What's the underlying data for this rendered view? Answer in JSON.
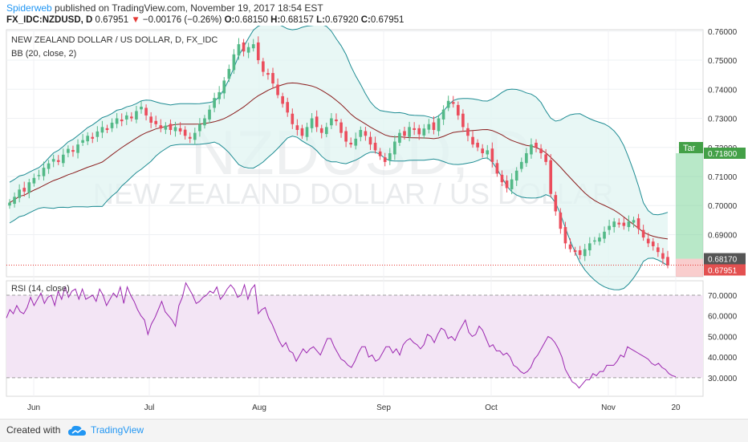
{
  "header": {
    "author": "Spiderweb",
    "published": "published on TradingView.com, November 19, 2017 18:54 EST",
    "symbol": "FX_IDC:NZDUSD, D",
    "last": "0.67951",
    "change": "−0.00176 (−0.26%)",
    "open_label": "O:",
    "open": "0.68150",
    "high_label": "H:",
    "high": "0.68157",
    "low_label": "L:",
    "low": "0.67920",
    "close_label": "C:",
    "close": "0.67951"
  },
  "footer": {
    "created_with": "Created with",
    "brand": "TradingView"
  },
  "colors": {
    "up": "#53b987",
    "down": "#eb4d5c",
    "band": "#1e8c93",
    "basis": "#8b1e1e",
    "rsi": "#9c27b0",
    "rsi_fill": "#f3e5f5",
    "band_fill": "#e0f4f2"
  },
  "chart_data": {
    "type": "candlestick",
    "title": "NEW ZEALAND DOLLAR / US DOLLAR, D, FX_IDC",
    "watermark": {
      "symbol": "NZDUSD, D",
      "name": "NEW ZEALAND DOLLAR / US DOLLAR"
    },
    "indicator_label": "BB (20, close, 2)",
    "xlabel": "",
    "ylabel": "",
    "x_ticks": [
      "Jun",
      "Jul",
      "Aug",
      "Sep",
      "Oct",
      "Nov",
      "20"
    ],
    "price_ticks": [
      "0.76000",
      "0.75000",
      "0.74000",
      "0.73000",
      "0.72000",
      "0.71000",
      "0.70000",
      "0.69000"
    ],
    "ylim": [
      0.6755,
      0.7605
    ],
    "price_levels": {
      "target": "0.71800",
      "entry": "0.68170",
      "stop": "0.67951"
    },
    "target_tag": "Tar",
    "closes": [
      0.701,
      0.703,
      0.7055,
      0.7048,
      0.708,
      0.7095,
      0.7105,
      0.713,
      0.7145,
      0.716,
      0.715,
      0.7175,
      0.7195,
      0.7185,
      0.721,
      0.7225,
      0.724,
      0.723,
      0.7255,
      0.727,
      0.726,
      0.7285,
      0.73,
      0.729,
      0.731,
      0.73,
      0.7325,
      0.734,
      0.731,
      0.7285,
      0.728,
      0.7265,
      0.7275,
      0.726,
      0.727,
      0.7255,
      0.724,
      0.723,
      0.725,
      0.728,
      0.73,
      0.733,
      0.737,
      0.739,
      0.743,
      0.747,
      0.752,
      0.7555,
      0.753,
      0.7545,
      0.7555,
      0.75,
      0.746,
      0.745,
      0.742,
      0.738,
      0.735,
      0.732,
      0.728,
      0.726,
      0.724,
      0.727,
      0.73,
      0.727,
      0.725,
      0.727,
      0.73,
      0.729,
      0.725,
      0.722,
      0.721,
      0.723,
      0.726,
      0.724,
      0.721,
      0.719,
      0.717,
      0.715,
      0.718,
      0.722,
      0.725,
      0.724,
      0.727,
      0.726,
      0.7245,
      0.7265,
      0.728,
      0.726,
      0.73,
      0.733,
      0.736,
      0.735,
      0.731,
      0.727,
      0.724,
      0.721,
      0.72,
      0.718,
      0.719,
      0.715,
      0.711,
      0.708,
      0.706,
      0.709,
      0.712,
      0.715,
      0.718,
      0.721,
      0.72,
      0.718,
      0.715,
      0.704,
      0.698,
      0.692,
      0.687,
      0.685,
      0.684,
      0.683,
      0.685,
      0.687,
      0.688,
      0.689,
      0.691,
      0.693,
      0.6945,
      0.6935,
      0.693,
      0.6945,
      0.695,
      0.692,
      0.689,
      0.687,
      0.686,
      0.684,
      0.6817,
      0.6795
    ],
    "rsi": {
      "label": "RSI (14, close)",
      "ticks": [
        "70.0000",
        "60.0000",
        "50.0000",
        "40.0000",
        "30.0000"
      ],
      "ylim": [
        21,
        77
      ],
      "band": [
        30,
        70
      ],
      "values": [
        59,
        63,
        61,
        65,
        62,
        61,
        64,
        69,
        65,
        68,
        71,
        66,
        69,
        70,
        65,
        72,
        68,
        74,
        69,
        72,
        73,
        68,
        73,
        68,
        69,
        70,
        67,
        73,
        70,
        65,
        68,
        71,
        69,
        74,
        66,
        74,
        70,
        67,
        63,
        60,
        58,
        51,
        56,
        59,
        63,
        67,
        62,
        60,
        58,
        55,
        65,
        69,
        76,
        73,
        70,
        66,
        67,
        69,
        70,
        72,
        71,
        74,
        68,
        70,
        73,
        75,
        73,
        69,
        70,
        75,
        68,
        73,
        75,
        61,
        63,
        64,
        59,
        56,
        52,
        48,
        45,
        47,
        43,
        42,
        38,
        41,
        44,
        42,
        44,
        45,
        43,
        41,
        45,
        49,
        49,
        45,
        42,
        39,
        38,
        36,
        35,
        38,
        42,
        45,
        45,
        40,
        41,
        38,
        39,
        42,
        45,
        45,
        42,
        44,
        41,
        46,
        48,
        49,
        47,
        46,
        44,
        46,
        51,
        50,
        47,
        51,
        54,
        53,
        49,
        50,
        48,
        52,
        55,
        58,
        52,
        50,
        51,
        55,
        53,
        49,
        45,
        46,
        43,
        43,
        41,
        42,
        40,
        36,
        35,
        33,
        32,
        33,
        35,
        39,
        41,
        44,
        47,
        50,
        49,
        47,
        44,
        40,
        34,
        31,
        28,
        27,
        25,
        27,
        29,
        29,
        32,
        31,
        33,
        33,
        36,
        36,
        36,
        38,
        41,
        40,
        45,
        44,
        43,
        42,
        41,
        40,
        39,
        37,
        36,
        37,
        35,
        34,
        32,
        31,
        30.5
      ]
    }
  }
}
